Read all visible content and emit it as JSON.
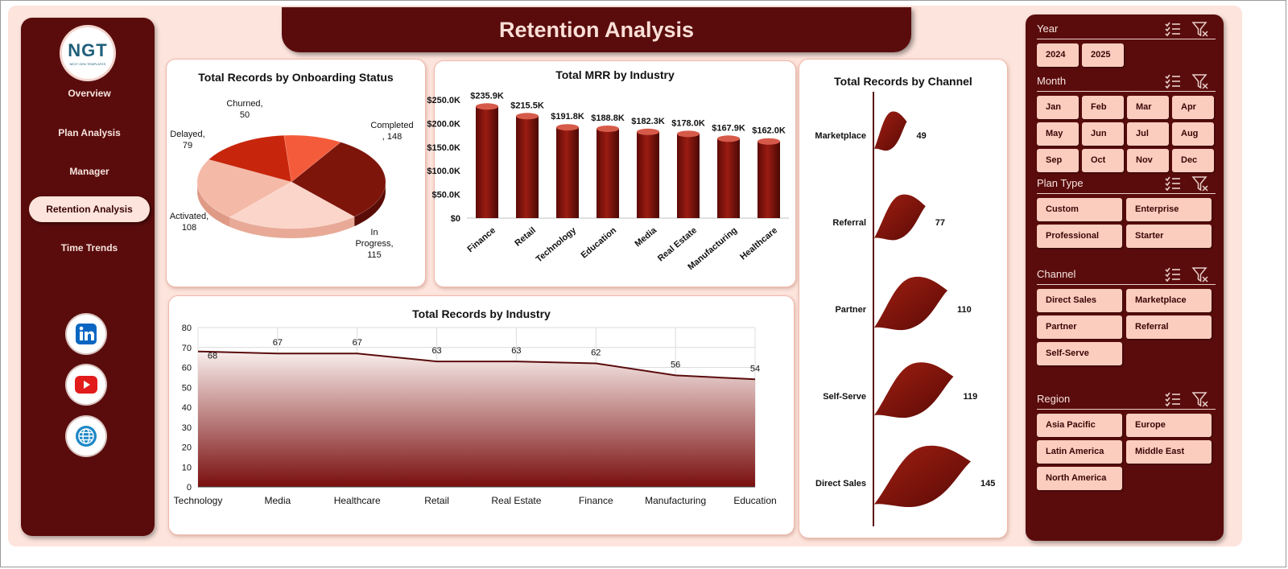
{
  "title": "Retention Analysis",
  "logo": {
    "text": "NGT",
    "subtext": "NEXT GEN TEMPLATES"
  },
  "nav": [
    {
      "label": "Overview",
      "active": false
    },
    {
      "label": "Plan Analysis",
      "active": false
    },
    {
      "label": "Manager",
      "active": false
    },
    {
      "label": "Retention Analysis",
      "active": true
    },
    {
      "label": "Time Trends",
      "active": false
    }
  ],
  "social": [
    {
      "icon": "linkedin-icon",
      "color": "#0a66c2"
    },
    {
      "icon": "youtube-icon",
      "color": "#e21b1b"
    },
    {
      "icon": "globe-icon",
      "color": "#1e88c7"
    }
  ],
  "colors": {
    "maroon": "#5a0c0c",
    "peach": "#fde4dc",
    "chip": "#fbcdbf",
    "bar": "#7a0f0f"
  },
  "chart_data": [
    {
      "id": "onboarding",
      "type": "pie",
      "title": "Total Records by Onboarding Status",
      "slices": [
        {
          "label": "Completed",
          "value": 148,
          "color": "#7d150b"
        },
        {
          "label": "In Progress",
          "value": 115,
          "color": "#fbd5c9"
        },
        {
          "label": "Activated",
          "value": 108,
          "color": "#f5b9a8"
        },
        {
          "label": "Delayed",
          "value": 79,
          "color": "#c8260c"
        },
        {
          "label": "Churned",
          "value": 50,
          "color": "#f45b3a"
        }
      ],
      "labels": [
        {
          "lines": [
            "Churned,",
            "50"
          ]
        },
        {
          "lines": [
            "Completed",
            ", 148"
          ]
        },
        {
          "lines": [
            "Delayed,",
            "79"
          ]
        },
        {
          "lines": [
            "Activated,",
            "108"
          ]
        },
        {
          "lines": [
            "In",
            "Progress,",
            "115"
          ]
        }
      ]
    },
    {
      "id": "mrr",
      "type": "bar",
      "title": "Total MRR by Industry",
      "categories": [
        "Finance",
        "Retail",
        "Technology",
        "Education",
        "Media",
        "Real Estate",
        "Manufacturing",
        "Healthcare"
      ],
      "values": [
        235.9,
        215.5,
        191.8,
        188.8,
        182.3,
        178.0,
        167.9,
        162.0
      ],
      "data_labels": [
        "$235.9K",
        "$215.5K",
        "$191.8K",
        "$188.8K",
        "$182.3K",
        "$178.0K",
        "$167.9K",
        "$162.0K"
      ],
      "y_ticks": [
        0,
        50,
        100,
        150,
        200,
        250
      ],
      "y_tick_labels": [
        "$0",
        "$50.0K",
        "$100.0K",
        "$150.0K",
        "$200.0K",
        "$250.0K"
      ],
      "ylim": [
        0,
        250
      ]
    },
    {
      "id": "industry",
      "type": "area",
      "title": "Total Records by Industry",
      "categories": [
        "Technology",
        "Media",
        "Healthcare",
        "Retail",
        "Real Estate",
        "Finance",
        "Manufacturing",
        "Education"
      ],
      "values": [
        68,
        67,
        67,
        63,
        63,
        62,
        56,
        54
      ],
      "y_ticks": [
        0,
        10,
        20,
        30,
        40,
        50,
        60,
        70,
        80
      ],
      "ylim": [
        0,
        80
      ],
      "grid": true
    },
    {
      "id": "channel",
      "type": "bar",
      "title": "Total Records by Channel",
      "categories": [
        "Marketplace",
        "Referral",
        "Partner",
        "Self-Serve",
        "Direct Sales"
      ],
      "values": [
        49,
        77,
        110,
        119,
        145
      ],
      "orientation": "horizontal"
    }
  ],
  "filters": [
    {
      "label": "Year",
      "options": [
        "2024",
        "2025"
      ]
    },
    {
      "label": "Month",
      "options": [
        "Jan",
        "Feb",
        "Mar",
        "Apr",
        "May",
        "Jun",
        "Jul",
        "Aug",
        "Sep",
        "Oct",
        "Nov",
        "Dec"
      ]
    },
    {
      "label": "Plan Type",
      "options": [
        "Custom",
        "Enterprise",
        "Professional",
        "Starter"
      ]
    },
    {
      "label": "Channel",
      "options": [
        "Direct Sales",
        "Marketplace",
        "Partner",
        "Referral",
        "Self-Serve"
      ]
    },
    {
      "label": "Region",
      "options": [
        "Asia Pacific",
        "Europe",
        "Latin America",
        "Middle East",
        "North America"
      ]
    }
  ]
}
